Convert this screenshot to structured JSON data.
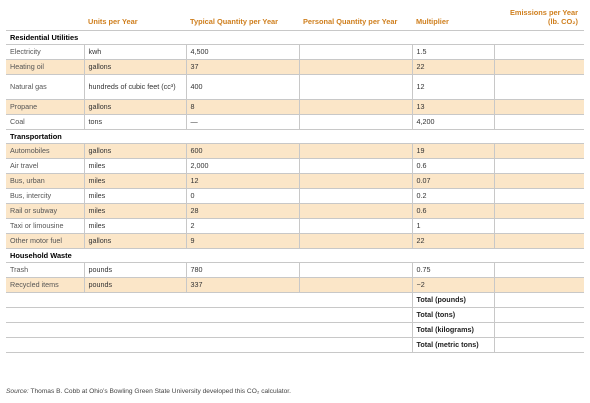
{
  "columns": {
    "item": "",
    "units": "Units per Year",
    "typical": "Typical Quantity per Year",
    "personal": "Personal Quantity per Year",
    "multiplier": "Multiplier",
    "emissions": "Emissions per Year (lb. CO₂)"
  },
  "sections": [
    {
      "title": "Residential Utilities",
      "rows": [
        {
          "item": "Electricity",
          "units": "kwh",
          "typical": "4,500",
          "personal": "",
          "multiplier": "1.5",
          "emissions": ""
        },
        {
          "item": "Heating oil",
          "units": "gallons",
          "typical": "37",
          "personal": "",
          "multiplier": "22",
          "emissions": ""
        },
        {
          "item": "Natural gas",
          "units": "hundreds of cubic feet (cc³)",
          "typical": "400",
          "personal": "",
          "multiplier": "12",
          "emissions": ""
        },
        {
          "item": "Propane",
          "units": "gallons",
          "typical": "8",
          "personal": "",
          "multiplier": "13",
          "emissions": ""
        },
        {
          "item": "Coal",
          "units": "tons",
          "typical": "—",
          "personal": "",
          "multiplier": "4,200",
          "emissions": ""
        }
      ]
    },
    {
      "title": "Transportation",
      "rows": [
        {
          "item": "Automobiles",
          "units": "gallons",
          "typical": "600",
          "personal": "",
          "multiplier": "19",
          "emissions": ""
        },
        {
          "item": "Air travel",
          "units": "miles",
          "typical": "2,000",
          "personal": "",
          "multiplier": "0.6",
          "emissions": ""
        },
        {
          "item": "Bus, urban",
          "units": "miles",
          "typical": "12",
          "personal": "",
          "multiplier": "0.07",
          "emissions": ""
        },
        {
          "item": "Bus, intercity",
          "units": "miles",
          "typical": "0",
          "personal": "",
          "multiplier": "0.2",
          "emissions": ""
        },
        {
          "item": "Rail or subway",
          "units": "miles",
          "typical": "28",
          "personal": "",
          "multiplier": "0.6",
          "emissions": ""
        },
        {
          "item": "Taxi or limousine",
          "units": "miles",
          "typical": "2",
          "personal": "",
          "multiplier": "1",
          "emissions": ""
        },
        {
          "item": "Other motor fuel",
          "units": "gallons",
          "typical": "9",
          "personal": "",
          "multiplier": "22",
          "emissions": ""
        }
      ]
    },
    {
      "title": "Household Waste",
      "rows": [
        {
          "item": "Trash",
          "units": "pounds",
          "typical": "780",
          "personal": "",
          "multiplier": "0.75",
          "emissions": ""
        },
        {
          "item": "Recycled items",
          "units": "pounds",
          "typical": "337",
          "personal": "",
          "multiplier": "−2",
          "emissions": ""
        }
      ]
    }
  ],
  "totals": [
    {
      "label": "Total (pounds)",
      "value": ""
    },
    {
      "label": "Total (tons)",
      "value": ""
    },
    {
      "label": "Total (kilograms)",
      "value": ""
    },
    {
      "label": "Total (metric tons)",
      "value": ""
    }
  ],
  "source": {
    "label": "Source:",
    "text": "Thomas B. Cobb at Ohio’s Bowling Green State University developed this CO₂ calculator."
  },
  "colors": {
    "header_text": "#cf7f1e",
    "row_shading": "#fbe6c8",
    "rule": "#c8c8c8"
  }
}
